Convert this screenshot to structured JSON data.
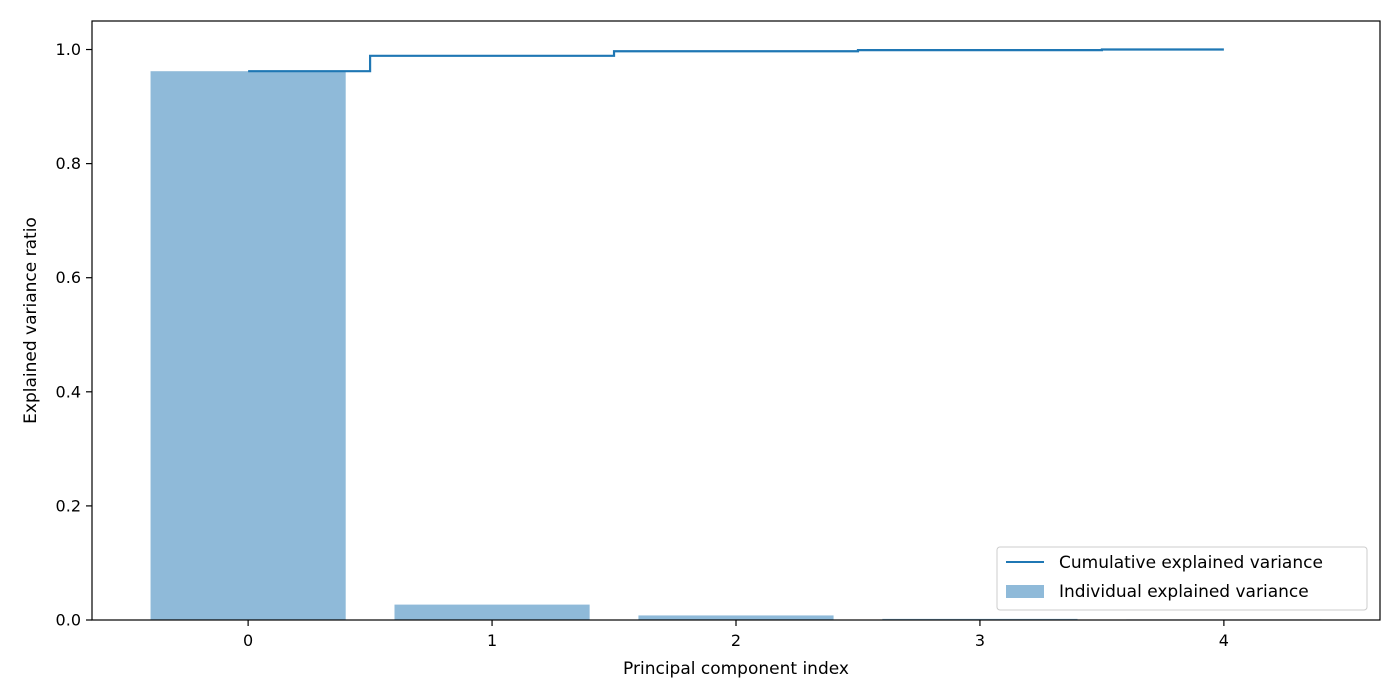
{
  "chart_data": {
    "type": "bar",
    "categories": [
      "0",
      "1",
      "2",
      "3",
      "4"
    ],
    "x": [
      0,
      1,
      2,
      3,
      4
    ],
    "series": [
      {
        "name": "Individual explained variance",
        "kind": "bar",
        "color": "#8fbad9",
        "values": [
          0.962,
          0.027,
          0.008,
          0.002,
          0.001
        ]
      },
      {
        "name": "Cumulative explained variance",
        "kind": "step",
        "color": "#1f77b4",
        "values": [
          0.962,
          0.989,
          0.997,
          0.999,
          1.0
        ]
      }
    ],
    "xlabel": "Principal component index",
    "ylabel": "Explained variance ratio",
    "xlim": [
      -0.64,
      4.64
    ],
    "ylim": [
      0.0,
      1.05
    ],
    "yticks": [
      0.0,
      0.2,
      0.4,
      0.6,
      0.8,
      1.0
    ],
    "ytick_labels": [
      "0.0",
      "0.2",
      "0.4",
      "0.6",
      "0.8",
      "1.0"
    ],
    "xticks": [
      0,
      1,
      2,
      3,
      4
    ],
    "xtick_labels": [
      "0",
      "1",
      "2",
      "3",
      "4"
    ],
    "grid": false,
    "legend_position": "lower-right"
  }
}
